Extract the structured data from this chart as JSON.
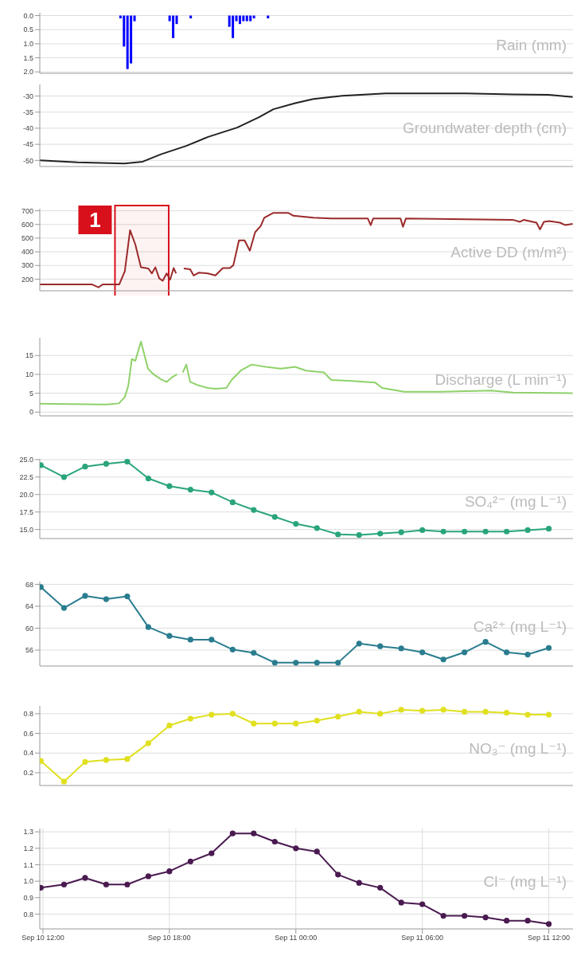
{
  "chart_data": [
    {
      "type": "bar",
      "title": "Rain (mm)",
      "x": [
        "--09-10T15:40",
        "--09-10T15:50",
        "--09-10T16:00",
        "--09-10T16:10",
        "--09-10T16:20",
        "--09-10T18:00",
        "--09-10T18:10",
        "--09-10T18:20",
        "--09-10T19:00",
        "--09-10T20:50",
        "--09-10T21:00",
        "--09-10T21:10",
        "--09-10T21:20",
        "--09-10T21:30",
        "--09-10T21:40",
        "--09-10T21:50",
        "--09-10T22:00",
        "--09-10T22:40"
      ],
      "series": [
        {
          "color": "#0000ff",
          "values": [
            0.1,
            1.1,
            1.9,
            1.7,
            0.2,
            0.2,
            0.8,
            0.3,
            0.1,
            0.4,
            0.8,
            0.2,
            0.3,
            0.2,
            0.2,
            0.2,
            0.1,
            0.1
          ]
        }
      ],
      "xlim": [
        "--09-10T11:51",
        "--09-11T13:09"
      ],
      "xticks": [
        {
          "value": "--09-10T12:00",
          "label": null
        },
        {
          "value": "--09-10T18:00",
          "label": null
        },
        {
          "value": "--09-11T00:00",
          "label": null
        },
        {
          "value": "--09-11T06:00",
          "label": null
        },
        {
          "value": "--09-11T12:00",
          "label": null
        }
      ],
      "ylim": [
        2.05,
        -0.1
      ],
      "yticks": [
        {
          "value": 0,
          "label": "0.0"
        },
        {
          "value": 0.5,
          "label": "0.5"
        },
        {
          "value": 1,
          "label": "1.0"
        },
        {
          "value": 1.5,
          "label": "1.5"
        },
        {
          "value": 2,
          "label": "2.0"
        }
      ],
      "grid": true,
      "tick_labels": "y"
    },
    {
      "type": "line",
      "title": "Groundwater depth (cm)",
      "x": [
        "--09-10T11:51",
        "--09-10T13:38",
        "--09-10T15:52",
        "--09-10T16:44",
        "--09-10T17:36",
        "--09-10T18:48",
        "--09-10T19:50",
        "--09-10T21:13",
        "--09-10T22:15",
        "--09-10T22:56",
        "--09-10T23:58",
        "--09-11T00:50",
        "--09-11T02:12",
        "--09-11T04:16",
        "--09-11T06:52",
        "--09-11T08:04",
        "--09-11T10:18",
        "--09-11T12:00",
        "--09-11T13:08"
      ],
      "series": [
        {
          "color": "#222222",
          "values": [
            -50,
            -50.6,
            -51.0,
            -50.4,
            -48.1,
            -45.5,
            -42.7,
            -39.8,
            -36.6,
            -34.1,
            -32.2,
            -30.9,
            -29.9,
            -29.2,
            -29.2,
            -29.2,
            -29.5,
            -29.6,
            -30.3
          ]
        }
      ],
      "xlim": [
        "--09-10T11:51",
        "--09-11T13:09"
      ],
      "xticks": [
        {
          "value": "--09-10T12:00",
          "label": null
        },
        {
          "value": "--09-10T18:00",
          "label": null
        },
        {
          "value": "--09-11T00:00",
          "label": null
        },
        {
          "value": "--09-11T06:00",
          "label": null
        },
        {
          "value": "--09-11T12:00",
          "label": null
        }
      ],
      "ylim": [
        -51.9,
        -26.4
      ],
      "yticks": [
        -30,
        -35,
        -40,
        -45,
        -50
      ],
      "grid": true,
      "tick_labels": "y",
      "marker": "none"
    },
    {
      "type": "line",
      "title": "Active DD (m/m²)",
      "bands": [
        {
          "axis": "x",
          "from": "--09-10T15:25",
          "to": "--09-10T17:58",
          "label": "1",
          "color": "#d8101c"
        }
      ],
      "x": [
        "--09-10T11:51",
        "--09-10T14:20",
        "--09-10T14:38",
        "--09-10T14:50",
        "--09-10T15:37",
        "--09-10T15:53",
        "--09-10T16:08",
        "--09-10T16:23",
        "--09-10T16:39",
        "--09-10T17:00",
        "--09-10T17:10",
        "--09-10T17:20",
        "--09-10T17:31",
        "--09-10T17:41",
        "--09-10T17:52",
        "--09-10T18:02",
        "--09-10T18:12",
        "--09-10T18:19",
        "--09-10T18:30",
        "--09-10T18:41",
        "--09-10T18:59",
        "--09-10T19:09",
        "--09-10T19:24",
        "--09-10T19:50",
        "--09-10T20:11",
        "--09-10T20:32",
        "--09-10T20:52",
        "--09-10T21:02",
        "--09-10T21:18",
        "--09-10T21:34",
        "--09-10T21:49",
        "--09-10T22:04",
        "--09-10T22:20",
        "--09-10T22:30",
        "--09-10T22:56",
        "--09-10T23:38",
        "--09-10T23:53",
        "--09-11T00:50",
        "--09-11T01:41",
        "--09-11T03:25",
        "--09-11T03:33",
        "--09-11T03:40",
        "--09-11T04:58",
        "--09-11T05:05",
        "--09-11T05:13",
        "--09-11T10:18",
        "--09-11T10:38",
        "--09-11T10:49",
        "--09-11T11:25",
        "--09-11T11:35",
        "--09-11T11:46",
        "--09-11T12:01",
        "--09-11T12:32",
        "--09-11T12:47",
        "--09-11T13:08"
      ],
      "series": [
        {
          "color": "#9b2a2a",
          "values": [
            161,
            161,
            140,
            161,
            161,
            257,
            558,
            453,
            287,
            278,
            242,
            287,
            206,
            188,
            242,
            197,
            281,
            242,
            null,
            278,
            272,
            227,
            248,
            242,
            227,
            281,
            281,
            302,
            483,
            483,
            408,
            543,
            589,
            649,
            685,
            685,
            664,
            649,
            643,
            643,
            595,
            643,
            643,
            583,
            643,
            634,
            619,
            634,
            613,
            564,
            619,
            625,
            613,
            595,
            604
          ]
        }
      ],
      "xlim": [
        "--09-10T11:51",
        "--09-11T13:09"
      ],
      "xticks": [
        {
          "value": "--09-10T12:00",
          "label": null
        },
        {
          "value": "--09-10T18:00",
          "label": null
        },
        {
          "value": "--09-11T00:00",
          "label": null
        },
        {
          "value": "--09-11T06:00",
          "label": null
        },
        {
          "value": "--09-11T12:00",
          "label": null
        }
      ],
      "ylim": [
        115,
        715
      ],
      "yticks": [
        200,
        300,
        400,
        500,
        600,
        700
      ],
      "grid": true,
      "tick_labels": "y",
      "marker": "none"
    },
    {
      "type": "line",
      "title": "Discharge (L min⁻¹)",
      "x": [
        "--09-10T11:51",
        "--09-10T15:00",
        "--09-10T15:36",
        "--09-10T15:53",
        "--09-10T16:03",
        "--09-10T16:13",
        "--09-10T16:23",
        "--09-10T16:39",
        "--09-10T16:49",
        "--09-10T16:59",
        "--09-10T17:15",
        "--09-10T17:36",
        "--09-10T17:52",
        "--09-10T18:07",
        "--09-10T18:22",
        "--09-10T18:30",
        "--09-10T18:38",
        "--09-10T18:48",
        "--09-10T18:59",
        "--09-10T19:19",
        "--09-10T19:50",
        "--09-10T20:11",
        "--09-10T20:42",
        "--09-10T20:57",
        "--09-10T21:23",
        "--09-10T21:54",
        "--09-10T22:35",
        "--09-10T23:17",
        "--09-10T23:58",
        "--09-11T00:29",
        "--09-11T01:20",
        "--09-11T01:41",
        "--09-11T02:33",
        "--09-11T03:46",
        "--09-11T04:06",
        "--09-11T05:08",
        "--09-11T06:52",
        "--09-11T09:16",
        "--09-11T10:18",
        "--09-11T13:08"
      ],
      "series": [
        {
          "color": "#8fd16a",
          "values": [
            2.2,
            2.0,
            2.3,
            4.0,
            7.0,
            14.1,
            13.6,
            18.7,
            15.1,
            11.5,
            10.0,
            8.7,
            8.0,
            9.2,
            10.0,
            null,
            10.5,
            12.6,
            8.0,
            7.2,
            6.4,
            6.2,
            6.4,
            8.5,
            11.0,
            12.6,
            12.0,
            11.5,
            12.0,
            11.0,
            10.5,
            8.5,
            8.3,
            7.8,
            6.4,
            5.4,
            5.4,
            5.7,
            5.2,
            5.0
          ]
        }
      ],
      "xlim": [
        "--09-10T11:51",
        "--09-11T13:09"
      ],
      "xticks": [
        {
          "value": "--09-10T12:00",
          "label": null
        },
        {
          "value": "--09-10T18:00",
          "label": null
        },
        {
          "value": "--09-11T00:00",
          "label": null
        },
        {
          "value": "--09-11T06:00",
          "label": null
        },
        {
          "value": "--09-11T12:00",
          "label": null
        }
      ],
      "ylim": [
        -1,
        19.7
      ],
      "yticks": [
        0,
        5,
        10,
        15
      ],
      "grid": true,
      "tick_labels": "y",
      "marker": "none"
    },
    {
      "type": "line",
      "title": "SO₄²⁻ (mg L⁻¹)",
      "x": [
        "--09-10T11:54",
        "--09-10T13:00",
        "--09-10T14:00",
        "--09-10T15:00",
        "--09-10T16:00",
        "--09-10T17:00",
        "--09-10T18:00",
        "--09-10T19:00",
        "--09-10T20:00",
        "--09-10T21:00",
        "--09-10T22:00",
        "--09-10T23:00",
        "--09-11T00:00",
        "--09-11T01:00",
        "--09-11T02:00",
        "--09-11T03:00",
        "--09-11T04:00",
        "--09-11T05:00",
        "--09-11T06:00",
        "--09-11T07:00",
        "--09-11T08:00",
        "--09-11T09:00",
        "--09-11T10:00",
        "--09-11T11:00",
        "--09-11T12:00"
      ],
      "series": [
        {
          "color": "#2aa57a",
          "values": [
            24.2,
            22.5,
            24.0,
            24.4,
            24.7,
            22.3,
            21.2,
            20.7,
            20.3,
            18.9,
            17.8,
            16.8,
            15.8,
            15.2,
            14.3,
            14.2,
            14.4,
            14.6,
            14.9,
            14.7,
            14.7,
            14.7,
            14.7,
            14.9,
            15.1
          ]
        }
      ],
      "xlim": [
        "--09-10T11:51",
        "--09-11T13:09"
      ],
      "xticks": [
        {
          "value": "--09-10T12:00",
          "label": null
        },
        {
          "value": "--09-10T18:00",
          "label": null
        },
        {
          "value": "--09-11T00:00",
          "label": null
        },
        {
          "value": "--09-11T06:00",
          "label": null
        },
        {
          "value": "--09-11T12:00",
          "label": null
        }
      ],
      "ylim": [
        13.7,
        25.1
      ],
      "yticks": [
        {
          "value": 25,
          "label": "25.0"
        },
        {
          "value": 22.5,
          "label": "22.5"
        },
        {
          "value": 20,
          "label": "20.0"
        },
        {
          "value": 17.5,
          "label": "17.5"
        },
        {
          "value": 15,
          "label": "15.0"
        }
      ],
      "grid": true,
      "tick_labels": "y",
      "marker": "circle"
    },
    {
      "type": "line",
      "title": "Ca²⁺ (mg L⁻¹)",
      "x": [
        "--09-10T11:54",
        "--09-10T13:00",
        "--09-10T14:00",
        "--09-10T15:00",
        "--09-10T16:00",
        "--09-10T17:00",
        "--09-10T18:00",
        "--09-10T19:00",
        "--09-10T20:00",
        "--09-10T21:00",
        "--09-10T22:00",
        "--09-10T23:00",
        "--09-11T00:00",
        "--09-11T01:00",
        "--09-11T02:00",
        "--09-11T03:00",
        "--09-11T04:00",
        "--09-11T05:00",
        "--09-11T06:00",
        "--09-11T07:00",
        "--09-11T08:00",
        "--09-11T09:00",
        "--09-11T10:00",
        "--09-11T11:00",
        "--09-11T12:00"
      ],
      "series": [
        {
          "color": "#2a7d8f",
          "values": [
            67.5,
            63.7,
            65.9,
            65.3,
            65.8,
            60.2,
            58.6,
            57.9,
            57.9,
            56.1,
            55.5,
            53.7,
            53.7,
            53.7,
            53.7,
            57.2,
            56.7,
            56.3,
            55.6,
            54.3,
            55.6,
            57.5,
            55.6,
            55.2,
            56.4
          ]
        }
      ],
      "xlim": [
        "--09-10T11:51",
        "--09-11T13:09"
      ],
      "xticks": [
        {
          "value": "--09-10T12:00",
          "label": null
        },
        {
          "value": "--09-10T18:00",
          "label": null
        },
        {
          "value": "--09-11T00:00",
          "label": null
        },
        {
          "value": "--09-11T06:00",
          "label": null
        },
        {
          "value": "--09-11T12:00",
          "label": null
        }
      ],
      "ylim": [
        53.1,
        68.5
      ],
      "yticks": [
        68,
        64,
        60,
        56
      ],
      "grid": true,
      "tick_labels": "y",
      "marker": "circle"
    },
    {
      "type": "line",
      "title": "NO₃⁻ (mg L⁻¹)",
      "x": [
        "--09-10T11:54",
        "--09-10T13:00",
        "--09-10T14:00",
        "--09-10T15:00",
        "--09-10T16:00",
        "--09-10T17:00",
        "--09-10T18:00",
        "--09-10T19:00",
        "--09-10T20:00",
        "--09-10T21:00",
        "--09-10T22:00",
        "--09-10T23:00",
        "--09-11T00:00",
        "--09-11T01:00",
        "--09-11T02:00",
        "--09-11T03:00",
        "--09-11T04:00",
        "--09-11T05:00",
        "--09-11T06:00",
        "--09-11T07:00",
        "--09-11T08:00",
        "--09-11T09:00",
        "--09-11T10:00",
        "--09-11T11:00",
        "--09-11T12:00"
      ],
      "series": [
        {
          "color": "#e0e020",
          "values": [
            0.32,
            0.11,
            0.31,
            0.33,
            0.34,
            0.5,
            0.68,
            0.75,
            0.79,
            0.8,
            0.7,
            0.7,
            0.7,
            0.73,
            0.77,
            0.82,
            0.8,
            0.84,
            0.83,
            0.84,
            0.82,
            0.82,
            0.81,
            0.79,
            0.79
          ]
        }
      ],
      "xlim": [
        "--09-10T11:51",
        "--09-11T13:09"
      ],
      "xticks": [
        {
          "value": "--09-10T12:00",
          "label": null
        },
        {
          "value": "--09-10T18:00",
          "label": null
        },
        {
          "value": "--09-11T00:00",
          "label": null
        },
        {
          "value": "--09-11T06:00",
          "label": null
        },
        {
          "value": "--09-11T12:00",
          "label": null
        }
      ],
      "ylim": [
        0.07,
        0.88
      ],
      "yticks": [
        0.8,
        0.6,
        0.4,
        0.2
      ],
      "grid": true,
      "tick_labels": "y",
      "marker": "circle"
    },
    {
      "type": "line",
      "title": "Cl⁻ (mg L⁻¹)",
      "x": [
        "--09-10T11:54",
        "--09-10T13:00",
        "--09-10T14:00",
        "--09-10T15:00",
        "--09-10T16:00",
        "--09-10T17:00",
        "--09-10T18:00",
        "--09-10T19:00",
        "--09-10T20:00",
        "--09-10T21:00",
        "--09-10T22:00",
        "--09-10T23:00",
        "--09-11T00:00",
        "--09-11T01:00",
        "--09-11T02:00",
        "--09-11T03:00",
        "--09-11T04:00",
        "--09-11T05:00",
        "--09-11T06:00",
        "--09-11T07:00",
        "--09-11T08:00",
        "--09-11T09:00",
        "--09-11T10:00",
        "--09-11T11:00",
        "--09-11T12:00"
      ],
      "series": [
        {
          "color": "#4a1a50",
          "values": [
            0.96,
            0.98,
            1.02,
            0.98,
            0.98,
            1.03,
            1.06,
            1.12,
            1.17,
            1.29,
            1.29,
            1.24,
            1.2,
            1.18,
            1.04,
            0.99,
            0.96,
            0.87,
            0.86,
            0.79,
            0.79,
            0.78,
            0.76,
            0.76,
            0.74
          ]
        }
      ],
      "xlim": [
        "--09-10T11:51",
        "--09-11T13:09"
      ],
      "xticks": [
        {
          "value": "--09-10T12:00",
          "label": "Sep 10 12:00"
        },
        {
          "value": "--09-10T18:00",
          "label": "Sep 10 18:00"
        },
        {
          "value": "--09-11T00:00",
          "label": "Sep 11 00:00"
        },
        {
          "value": "--09-11T06:00",
          "label": "Sep 11 06:00"
        },
        {
          "value": "--09-11T12:00",
          "label": "Sep 11 12:00"
        }
      ],
      "ylim": [
        0.71,
        1.32
      ],
      "yticks": [
        1.3,
        1.2,
        1.1,
        {
          "value": 1,
          "label": "1.0"
        },
        0.9,
        0.8
      ],
      "grid": true,
      "marker": "circle"
    }
  ]
}
